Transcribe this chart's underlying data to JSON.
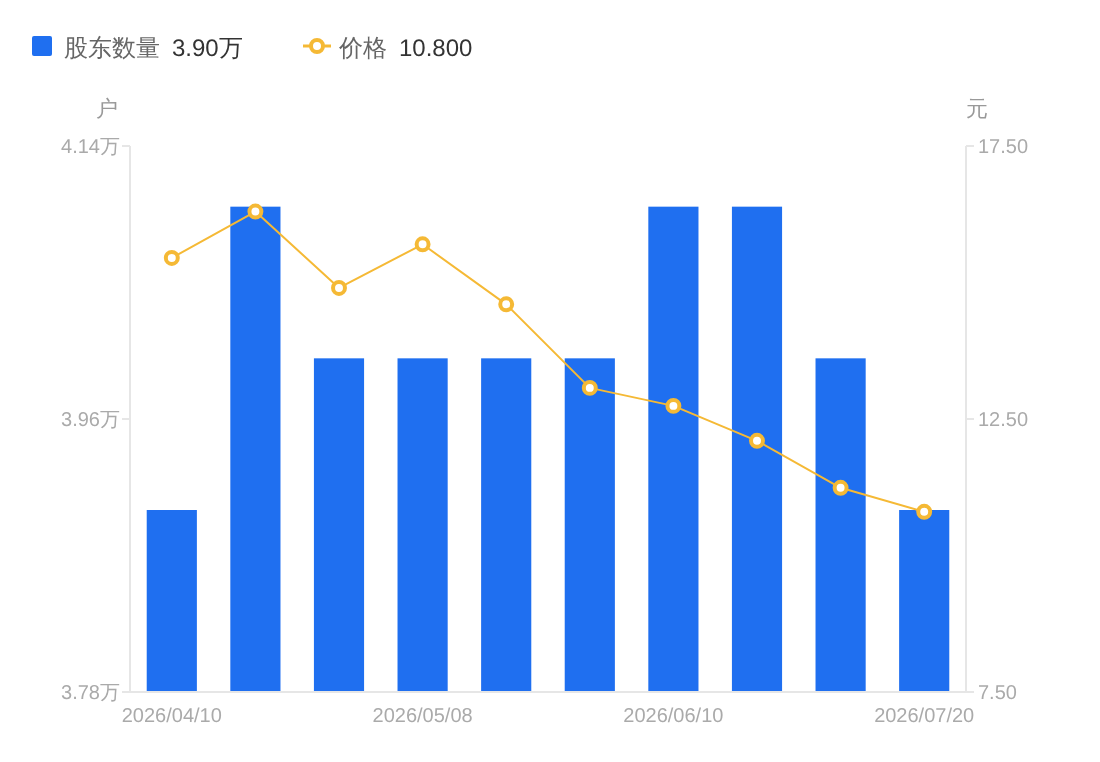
{
  "chart_data": {
    "type": "bar",
    "categories": [
      "2026/04/10",
      null,
      null,
      "2026/05/08",
      null,
      null,
      "2026/06/10",
      null,
      null,
      "2026/07/20"
    ],
    "series": [
      {
        "name": "股东数量",
        "color": "#1f6ff0",
        "values": [
          3.9,
          4.1,
          4.0,
          4.0,
          4.0,
          4.0,
          4.1,
          4.1,
          4.0,
          3.9
        ]
      },
      {
        "name": "价格",
        "type": "line",
        "axis": "y2",
        "color": "#f5b935",
        "values": [
          15.45,
          16.3,
          14.9,
          15.7,
          14.6,
          13.07,
          12.74,
          12.1,
          11.24,
          10.8
        ]
      }
    ],
    "ylabel": "户",
    "y2label": "元",
    "ylim": [
      3.78,
      4.14
    ],
    "yticks": [
      {
        "value": 3.78,
        "label": "3.78万"
      },
      {
        "value": 3.96,
        "label": "3.96万"
      },
      {
        "value": 4.14,
        "label": "4.14万"
      }
    ],
    "y2lim": [
      7.5,
      17.5
    ],
    "y2ticks": [
      {
        "value": 7.5,
        "label": "7.50"
      },
      {
        "value": 12.5,
        "label": "12.50"
      },
      {
        "value": 17.5,
        "label": "17.50"
      }
    ],
    "annotations": [
      "3.90万",
      "10.800"
    ],
    "legend": "top left",
    "marker": "circle",
    "grid": false
  }
}
